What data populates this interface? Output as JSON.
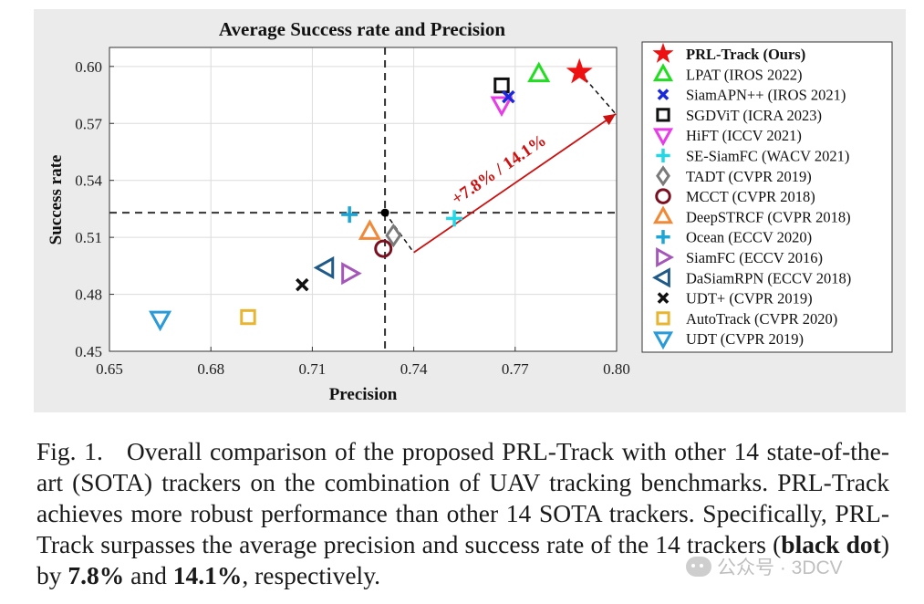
{
  "chart_data": {
    "type": "scatter",
    "title": "Average Success rate and Precision",
    "xlabel": "Precision",
    "ylabel": "Success rate",
    "xlim": [
      0.65,
      0.8
    ],
    "ylim": [
      0.45,
      0.61
    ],
    "xticks": [
      "0.65",
      "0.68",
      "0.71",
      "0.74",
      "0.77",
      "0.80"
    ],
    "yticks": [
      "0.45",
      "0.48",
      "0.51",
      "0.54",
      "0.57",
      "0.60"
    ],
    "grid": true,
    "legend_position": "right",
    "reference_lines": {
      "x": 0.7315,
      "y": 0.523
    },
    "average_point": {
      "x": 0.7315,
      "y": 0.523,
      "color": "#000000"
    },
    "improvement_annotation": {
      "label": "+7.8% / 14.1%",
      "color": "#cc1111",
      "from": {
        "x": 0.74,
        "y": 0.502
      },
      "to": {
        "x": 0.8,
        "y": 0.575
      }
    },
    "series": [
      {
        "name": "PRL-Track (Ours)",
        "bold": true,
        "marker": "star",
        "color": "#ee1111",
        "x": 0.789,
        "y": 0.597
      },
      {
        "name": "LPAT (IROS 2022)",
        "marker": "triangle-up",
        "color": "#22dd22",
        "x": 0.777,
        "y": 0.596
      },
      {
        "name": "SiamAPN++ (IROS 2021)",
        "marker": "x",
        "color": "#1a2ad8",
        "x": 0.768,
        "y": 0.584
      },
      {
        "name": "SGDViT (ICRA 2023)",
        "marker": "square",
        "color": "#111111",
        "x": 0.766,
        "y": 0.59
      },
      {
        "name": "HiFT (ICCV 2021)",
        "marker": "triangle-down",
        "color": "#e83ce8",
        "x": 0.766,
        "y": 0.58
      },
      {
        "name": "SE-SiamFC (WACV 2021)",
        "marker": "plus",
        "color": "#22d8e6",
        "x": 0.752,
        "y": 0.52
      },
      {
        "name": "TADT (CVPR 2019)",
        "marker": "diamond",
        "color": "#7a7a7a",
        "x": 0.734,
        "y": 0.511
      },
      {
        "name": "MCCT (CVPR 2018)",
        "marker": "circle",
        "color": "#7a0f1f",
        "x": 0.731,
        "y": 0.504
      },
      {
        "name": "DeepSTRCF (CVPR 2018)",
        "marker": "triangle-up",
        "color": "#f08a38",
        "x": 0.727,
        "y": 0.513
      },
      {
        "name": "Ocean (ECCV 2020)",
        "marker": "plus",
        "color": "#1ca6d8",
        "x": 0.721,
        "y": 0.522
      },
      {
        "name": "SiamFC (ECCV 2016)",
        "marker": "triangle-right",
        "color": "#a457b8",
        "x": 0.721,
        "y": 0.491
      },
      {
        "name": "DaSiamRPN (ECCV 2018)",
        "marker": "triangle-left",
        "color": "#1f5a88",
        "x": 0.714,
        "y": 0.494
      },
      {
        "name": "UDT+ (CVPR 2019)",
        "marker": "x",
        "color": "#111111",
        "x": 0.707,
        "y": 0.485
      },
      {
        "name": "AutoTrack (CVPR 2020)",
        "marker": "square",
        "color": "#e8b531",
        "x": 0.691,
        "y": 0.468
      },
      {
        "name": "UDT (CVPR 2019)",
        "marker": "triangle-down",
        "color": "#2a9ad8",
        "x": 0.665,
        "y": 0.467
      }
    ]
  },
  "caption": {
    "fig_label": "Fig. 1.",
    "text_part1": "Overall comparison of the proposed PRL-Track with other 14 state-of-the-art (SOTA) trackers on the combination of UAV tracking benchmarks. PRL-Track achieves more robust performance than other 14 SOTA trackers. Specifically, PRL-Track surpasses the average precision and success rate of the 14 trackers (",
    "bold_black_dot": "black dot",
    "text_part2": ") by ",
    "bold_pct1": "7.8%",
    "text_part3": " and ",
    "bold_pct2": "14.1%",
    "text_part4": ", respectively."
  },
  "watermark": {
    "text": "公众号 · 3DCV"
  }
}
